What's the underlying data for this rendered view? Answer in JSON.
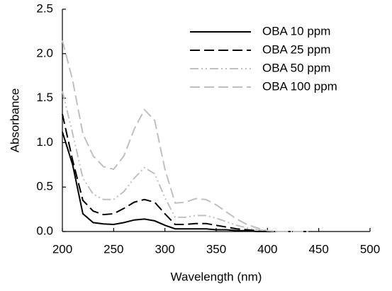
{
  "chart_data": {
    "type": "line",
    "x_label": "Wavelength (nm)",
    "y_label": "Absorbance",
    "x": [
      200,
      210,
      220,
      230,
      240,
      250,
      260,
      270,
      280,
      290,
      300,
      310,
      320,
      330,
      340,
      350,
      360,
      370,
      380,
      390,
      400,
      410,
      420,
      430,
      440
    ],
    "series": [
      {
        "name": "OBA 10 ppm",
        "color": "#000000",
        "dash": "solid",
        "values": [
          1.12,
          0.75,
          0.2,
          0.1,
          0.085,
          0.08,
          0.1,
          0.13,
          0.14,
          0.12,
          0.07,
          0.03,
          0.03,
          0.03,
          0.03,
          0.02,
          0.02,
          0.01,
          0.01,
          0,
          0,
          0,
          0,
          0,
          0
        ]
      },
      {
        "name": "OBA 25 ppm",
        "color": "#000000",
        "dash": "dashed",
        "values": [
          1.32,
          0.8,
          0.35,
          0.23,
          0.19,
          0.2,
          0.26,
          0.33,
          0.36,
          0.33,
          0.2,
          0.08,
          0.08,
          0.09,
          0.09,
          0.07,
          0.05,
          0.03,
          0.02,
          0.01,
          0,
          0,
          0,
          0,
          0
        ]
      },
      {
        "name": "OBA 50 ppm",
        "color": "#c0c0c0",
        "dash": "dashdotdot",
        "values": [
          1.58,
          1.1,
          0.6,
          0.42,
          0.36,
          0.36,
          0.45,
          0.6,
          0.72,
          0.65,
          0.38,
          0.16,
          0.16,
          0.18,
          0.18,
          0.15,
          0.11,
          0.07,
          0.04,
          0.02,
          0.01,
          0,
          0,
          0,
          0
        ]
      },
      {
        "name": "OBA 100 ppm",
        "color": "#c0c0c0",
        "dash": "dashed",
        "values": [
          2.15,
          1.7,
          1.1,
          0.85,
          0.73,
          0.7,
          0.85,
          1.15,
          1.37,
          1.25,
          0.7,
          0.32,
          0.33,
          0.37,
          0.36,
          0.3,
          0.22,
          0.14,
          0.08,
          0.04,
          0.01,
          0,
          0,
          0,
          0
        ]
      }
    ],
    "xlim": [
      200,
      500
    ],
    "xticks": [
      200,
      250,
      300,
      350,
      400,
      450,
      500
    ],
    "ylim": [
      0,
      2.5
    ],
    "yticks": [
      {
        "value": 0,
        "label": "0.0"
      },
      0.5,
      {
        "value": 1,
        "label": "1.0"
      },
      1.5,
      {
        "value": 2,
        "label": "2.0"
      },
      2.5
    ],
    "legend": "upper right",
    "grid": false
  }
}
